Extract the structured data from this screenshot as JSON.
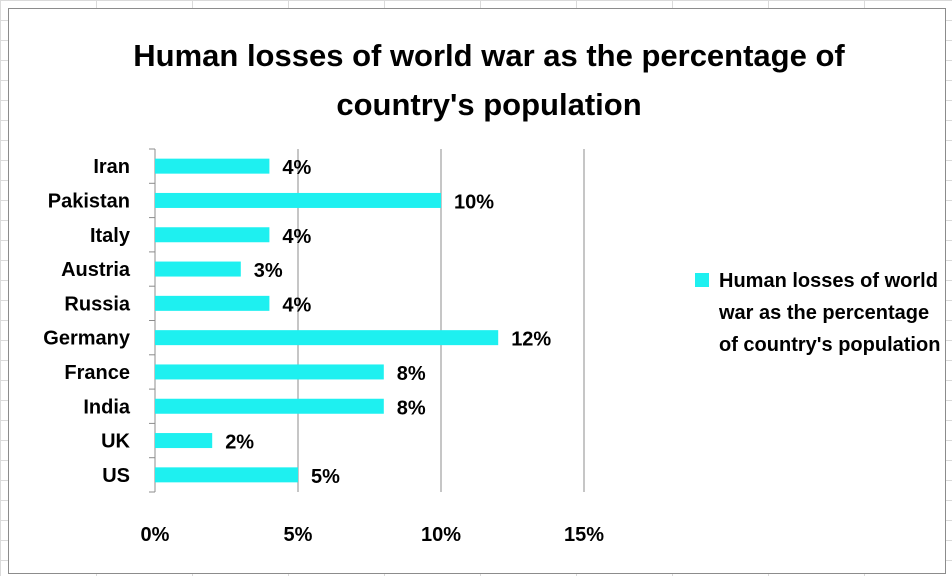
{
  "chart_data": {
    "type": "bar",
    "orientation": "horizontal",
    "title": "Human losses of world war as the percentage of country's population",
    "categories": [
      "Iran",
      "Pakistan",
      "Italy",
      "Austria",
      "Russia",
      "Germany",
      "France",
      "India",
      "UK",
      "US"
    ],
    "series": [
      {
        "name": "Human losses of world war as the percentage of country's population",
        "values": [
          4,
          10,
          4,
          3,
          4,
          12,
          8,
          8,
          2,
          5
        ],
        "data_labels": [
          "4%",
          "10%",
          "4%",
          "3%",
          "4%",
          "12%",
          "8%",
          "8%",
          "2%",
          "5%"
        ],
        "color": "#1ef0f0"
      }
    ],
    "x_ticks": [
      0,
      5,
      10,
      15
    ],
    "x_tick_labels": [
      "0%",
      "5%",
      "10%",
      "15%"
    ],
    "xlim": [
      0,
      15
    ],
    "unit": "%",
    "grid": "vertical major gridlines",
    "legend": "right"
  },
  "colors": {
    "bar": "#1ef0f0",
    "gridline": "#8c8c8c",
    "text": "#000000"
  }
}
